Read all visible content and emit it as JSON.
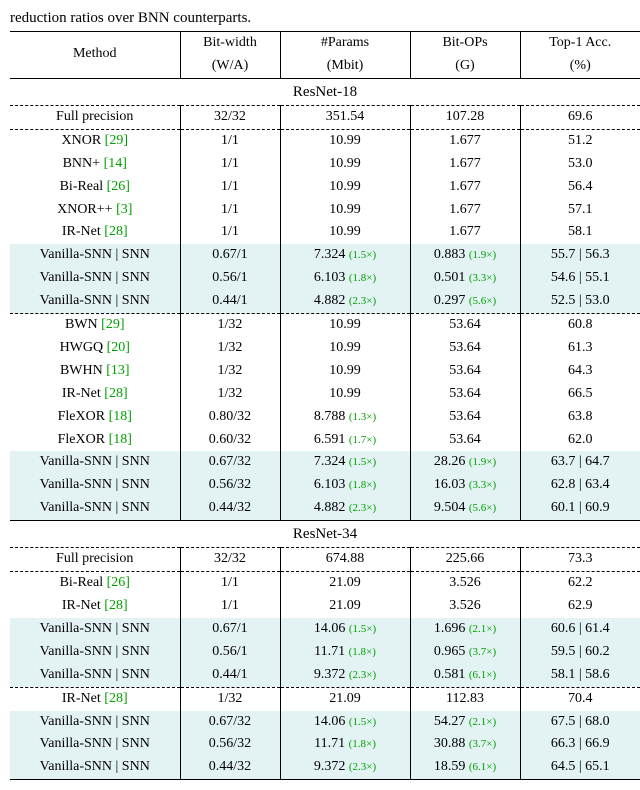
{
  "caption_fragment": "reduction ratios over BNN counterparts.",
  "header": {
    "method": "Method",
    "bitwidth_l1": "Bit-width",
    "bitwidth_l2": "(W/A)",
    "params_l1": "#Params",
    "params_l2": "(Mbit)",
    "bitops_l1": "Bit-OPs",
    "bitops_l2": "(G)",
    "acc_l1": "Top-1 Acc.",
    "acc_l2": "(%)"
  },
  "sections": [
    {
      "title": "ResNet-18",
      "groups": [
        {
          "rows": [
            {
              "hl": false,
              "method": "Full precision",
              "cite": "",
              "bw": "32/32",
              "params": "351.54",
              "params_ratio": "",
              "ops": "107.28",
              "ops_ratio": "",
              "acc": "69.6"
            }
          ]
        },
        {
          "rows": [
            {
              "hl": false,
              "method": "XNOR ",
              "cite": "[29]",
              "bw": "1/1",
              "params": "10.99",
              "params_ratio": "",
              "ops": "1.677",
              "ops_ratio": "",
              "acc": "51.2"
            },
            {
              "hl": false,
              "method": "BNN+ ",
              "cite": "[14]",
              "bw": "1/1",
              "params": "10.99",
              "params_ratio": "",
              "ops": "1.677",
              "ops_ratio": "",
              "acc": "53.0"
            },
            {
              "hl": false,
              "method": "Bi-Real ",
              "cite": "[26]",
              "bw": "1/1",
              "params": "10.99",
              "params_ratio": "",
              "ops": "1.677",
              "ops_ratio": "",
              "acc": "56.4"
            },
            {
              "hl": false,
              "method": "XNOR++ ",
              "cite": "[3]",
              "bw": "1/1",
              "params": "10.99",
              "params_ratio": "",
              "ops": "1.677",
              "ops_ratio": "",
              "acc": "57.1"
            },
            {
              "hl": false,
              "method": "IR-Net ",
              "cite": "[28]",
              "bw": "1/1",
              "params": "10.99",
              "params_ratio": "",
              "ops": "1.677",
              "ops_ratio": "",
              "acc": "58.1"
            },
            {
              "hl": true,
              "method": "Vanilla-SNN | SNN",
              "cite": "",
              "bw": "0.67/1",
              "params": "7.324 ",
              "params_ratio": "(1.5×)",
              "ops": "0.883 ",
              "ops_ratio": "(1.9×)",
              "acc": "55.7 | 56.3"
            },
            {
              "hl": true,
              "method": "Vanilla-SNN | SNN",
              "cite": "",
              "bw": "0.56/1",
              "params": "6.103 ",
              "params_ratio": "(1.8×)",
              "ops": "0.501 ",
              "ops_ratio": "(3.3×)",
              "acc": "54.6 | 55.1"
            },
            {
              "hl": true,
              "method": "Vanilla-SNN | SNN",
              "cite": "",
              "bw": "0.44/1",
              "params": "4.882 ",
              "params_ratio": "(2.3×)",
              "ops": "0.297 ",
              "ops_ratio": "(5.6×)",
              "acc": "52.5 | 53.0"
            }
          ]
        },
        {
          "rows": [
            {
              "hl": false,
              "method": "BWN ",
              "cite": "[29]",
              "bw": "1/32",
              "params": "10.99",
              "params_ratio": "",
              "ops": "53.64",
              "ops_ratio": "",
              "acc": "60.8"
            },
            {
              "hl": false,
              "method": "HWGQ ",
              "cite": "[20]",
              "bw": "1/32",
              "params": "10.99",
              "params_ratio": "",
              "ops": "53.64",
              "ops_ratio": "",
              "acc": "61.3"
            },
            {
              "hl": false,
              "method": "BWHN ",
              "cite": "[13]",
              "bw": "1/32",
              "params": "10.99",
              "params_ratio": "",
              "ops": "53.64",
              "ops_ratio": "",
              "acc": "64.3"
            },
            {
              "hl": false,
              "method": "IR-Net ",
              "cite": "[28]",
              "bw": "1/32",
              "params": "10.99",
              "params_ratio": "",
              "ops": "53.64",
              "ops_ratio": "",
              "acc": "66.5"
            },
            {
              "hl": false,
              "method": "FleXOR ",
              "cite": "[18]",
              "bw": "0.80/32",
              "params": "8.788 ",
              "params_ratio": "(1.3×)",
              "ops": "53.64",
              "ops_ratio": "",
              "acc": "63.8"
            },
            {
              "hl": false,
              "method": "FleXOR ",
              "cite": "[18]",
              "bw": "0.60/32",
              "params": "6.591 ",
              "params_ratio": "(1.7×)",
              "ops": "53.64",
              "ops_ratio": "",
              "acc": "62.0"
            },
            {
              "hl": true,
              "method": "Vanilla-SNN | SNN",
              "cite": "",
              "bw": "0.67/32",
              "params": "7.324 ",
              "params_ratio": "(1.5×)",
              "ops": "28.26 ",
              "ops_ratio": "(1.9×)",
              "acc": "63.7 | 64.7"
            },
            {
              "hl": true,
              "method": "Vanilla-SNN | SNN",
              "cite": "",
              "bw": "0.56/32",
              "params": "6.103 ",
              "params_ratio": "(1.8×)",
              "ops": "16.03 ",
              "ops_ratio": "(3.3×)",
              "acc": "62.8 | 63.4"
            },
            {
              "hl": true,
              "method": "Vanilla-SNN | SNN",
              "cite": "",
              "bw": "0.44/32",
              "params": "4.882 ",
              "params_ratio": "(2.3×)",
              "ops": "9.504 ",
              "ops_ratio": "(5.6×)",
              "acc": "60.1 | 60.9"
            }
          ]
        }
      ]
    },
    {
      "title": "ResNet-34",
      "groups": [
        {
          "rows": [
            {
              "hl": false,
              "method": "Full precision",
              "cite": "",
              "bw": "32/32",
              "params": "674.88",
              "params_ratio": "",
              "ops": "225.66",
              "ops_ratio": "",
              "acc": "73.3"
            }
          ]
        },
        {
          "rows": [
            {
              "hl": false,
              "method": "Bi-Real ",
              "cite": "[26]",
              "bw": "1/1",
              "params": "21.09",
              "params_ratio": "",
              "ops": "3.526",
              "ops_ratio": "",
              "acc": "62.2"
            },
            {
              "hl": false,
              "method": "IR-Net ",
              "cite": "[28]",
              "bw": "1/1",
              "params": "21.09",
              "params_ratio": "",
              "ops": "3.526",
              "ops_ratio": "",
              "acc": "62.9"
            },
            {
              "hl": true,
              "method": "Vanilla-SNN | SNN",
              "cite": "",
              "bw": "0.67/1",
              "params": "14.06 ",
              "params_ratio": "(1.5×)",
              "ops": "1.696 ",
              "ops_ratio": "(2.1×)",
              "acc": "60.6 | 61.4"
            },
            {
              "hl": true,
              "method": "Vanilla-SNN | SNN",
              "cite": "",
              "bw": "0.56/1",
              "params": "11.71 ",
              "params_ratio": "(1.8×)",
              "ops": "0.965 ",
              "ops_ratio": "(3.7×)",
              "acc": "59.5 | 60.2"
            },
            {
              "hl": true,
              "method": "Vanilla-SNN | SNN",
              "cite": "",
              "bw": "0.44/1",
              "params": "9.372 ",
              "params_ratio": "(2.3×)",
              "ops": "0.581 ",
              "ops_ratio": "(6.1×)",
              "acc": "58.1 | 58.6"
            }
          ]
        },
        {
          "rows": [
            {
              "hl": false,
              "method": "IR-Net ",
              "cite": "[28]",
              "bw": "1/32",
              "params": "21.09",
              "params_ratio": "",
              "ops": "112.83",
              "ops_ratio": "",
              "acc": "70.4"
            },
            {
              "hl": true,
              "method": "Vanilla-SNN | SNN",
              "cite": "",
              "bw": "0.67/32",
              "params": "14.06 ",
              "params_ratio": "(1.5×)",
              "ops": "54.27 ",
              "ops_ratio": "(2.1×)",
              "acc": "67.5 | 68.0"
            },
            {
              "hl": true,
              "method": "Vanilla-SNN | SNN",
              "cite": "",
              "bw": "0.56/32",
              "params": "11.71 ",
              "params_ratio": "(1.8×)",
              "ops": "30.88 ",
              "ops_ratio": "(3.7×)",
              "acc": "66.3 | 66.9"
            },
            {
              "hl": true,
              "method": "Vanilla-SNN | SNN",
              "cite": "",
              "bw": "0.44/32",
              "params": "9.372 ",
              "params_ratio": "(2.3×)",
              "ops": "18.59 ",
              "ops_ratio": "(6.1×)",
              "acc": "64.5 | 65.1"
            }
          ]
        }
      ]
    }
  ]
}
